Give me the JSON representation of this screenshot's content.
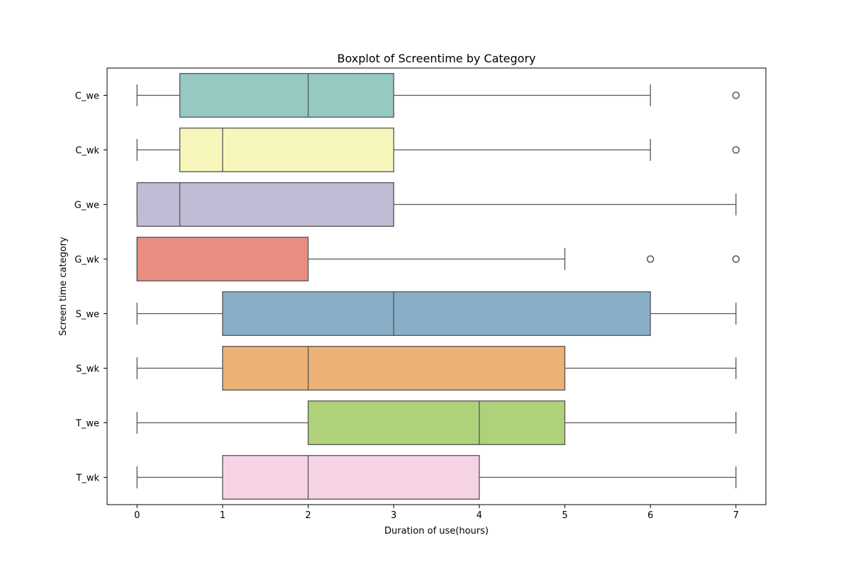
{
  "chart_data": {
    "type": "boxplot",
    "title": "Boxplot of Screentime by Category",
    "xlabel": "Duration of use(hours)",
    "ylabel": "Screen time category",
    "xlim": [
      -0.35,
      7.35
    ],
    "xticks": [
      "0",
      "1",
      "2",
      "3",
      "4",
      "5",
      "6",
      "7"
    ],
    "orientation": "horizontal",
    "grid": false,
    "legend": "none",
    "categories": [
      "C_we",
      "C_wk",
      "G_we",
      "G_wk",
      "S_we",
      "S_wk",
      "T_we",
      "T_wk"
    ],
    "boxes": [
      {
        "category": "C_we",
        "whisker_low": 0,
        "q1": 0.5,
        "median": 2,
        "q3": 3,
        "whisker_high": 6,
        "outliers": [
          7
        ],
        "color": "#96C9C1"
      },
      {
        "category": "C_wk",
        "whisker_low": 0,
        "q1": 0.5,
        "median": 1,
        "q3": 3,
        "whisker_high": 6,
        "outliers": [
          7
        ],
        "color": "#F7F6BA"
      },
      {
        "category": "G_we",
        "whisker_low": 0,
        "q1": 0,
        "median": 0.5,
        "q3": 3,
        "whisker_high": 7,
        "outliers": [],
        "color": "#C0BCD6"
      },
      {
        "category": "G_wk",
        "whisker_low": 0,
        "q1": 0,
        "median": 0,
        "q3": 2,
        "whisker_high": 5,
        "outliers": [
          6,
          7
        ],
        "color": "#E98D81"
      },
      {
        "category": "S_we",
        "whisker_low": 0,
        "q1": 1,
        "median": 3,
        "q3": 6,
        "whisker_high": 7,
        "outliers": [],
        "color": "#89AFC8"
      },
      {
        "category": "S_wk",
        "whisker_low": 0,
        "q1": 1,
        "median": 2,
        "q3": 5,
        "whisker_high": 7,
        "outliers": [],
        "color": "#EBB175"
      },
      {
        "category": "T_we",
        "whisker_low": 0,
        "q1": 2,
        "median": 4,
        "q3": 5,
        "whisker_high": 7,
        "outliers": [],
        "color": "#AFD17A"
      },
      {
        "category": "T_wk",
        "whisker_low": 0,
        "q1": 1,
        "median": 2,
        "q3": 4,
        "whisker_high": 7,
        "outliers": [],
        "color": "#F5D3E5"
      }
    ]
  }
}
